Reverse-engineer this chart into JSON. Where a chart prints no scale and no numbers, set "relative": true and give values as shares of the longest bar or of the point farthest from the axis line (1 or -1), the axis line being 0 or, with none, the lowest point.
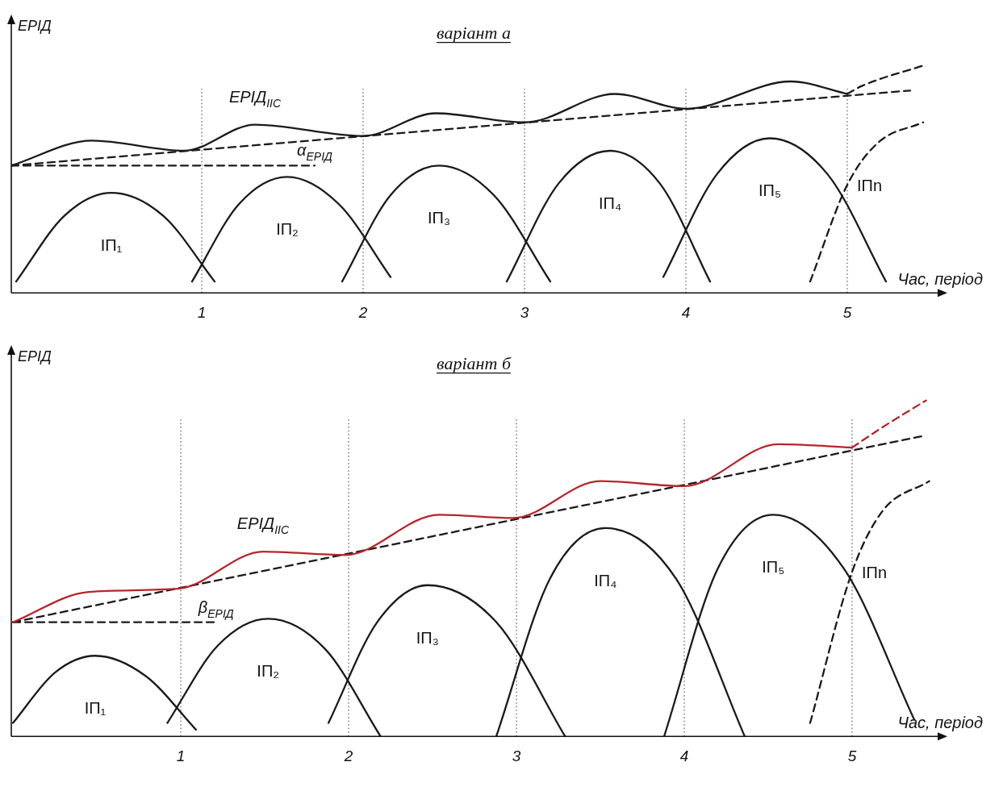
{
  "chart_data": [
    {
      "type": "line",
      "title": "варіант а",
      "ylabel": "ЕРІД",
      "xlabel": "Час, період",
      "relative": true,
      "xlim": [
        -0.18,
        5.55
      ],
      "xticks": [
        1,
        2,
        3,
        4,
        5
      ],
      "marker": "none",
      "legend": false,
      "grid": false,
      "series": [
        {
          "name": "ЕРІД$_{ІІС}$",
          "color": "#1a1a1a",
          "line_style": "solid",
          "x": [
            -0.18,
            0.32,
            0.89,
            1.33,
            2.0,
            2.45,
            3.0,
            3.56,
            4.0,
            4.65,
            5.0
          ],
          "values": [
            0.56,
            0.67,
            0.625,
            0.74,
            0.69,
            0.79,
            0.75,
            0.875,
            0.81,
            0.93,
            0.875
          ]
        },
        {
          "color": "#1a1a1a",
          "line_style": "dashed",
          "x": [
            5.0,
            5.09,
            5.47
          ],
          "values": [
            0.875,
            0.91,
            1.0
          ]
        },
        {
          "color": "#1a1a1a",
          "line_style": "dashed",
          "x": [
            -0.18,
            5.39
          ],
          "values": [
            0.56,
            0.89
          ]
        },
        {
          "color": "#1a1a1a",
          "line_style": "dashed",
          "x": [
            -0.18,
            1.7
          ],
          "values": [
            0.56,
            0.56
          ]
        },
        {
          "name": "ІП₁",
          "color": "#1a1a1a",
          "line_style": "solid",
          "x": [
            -0.15,
            0.15,
            0.44,
            0.76,
            1.08
          ],
          "values": [
            0.05,
            0.34,
            0.44,
            0.34,
            0.05
          ]
        },
        {
          "name": "ІП₂",
          "color": "#1a1a1a",
          "line_style": "solid",
          "x": [
            0.94,
            1.23,
            1.53,
            1.85,
            2.17
          ],
          "values": [
            0.05,
            0.39,
            0.51,
            0.39,
            0.07
          ]
        },
        {
          "name": "ІП₃",
          "color": "#1a1a1a",
          "line_style": "solid",
          "x": [
            1.87,
            2.17,
            2.47,
            2.81,
            3.16
          ],
          "values": [
            0.05,
            0.43,
            0.56,
            0.43,
            0.05
          ]
        },
        {
          "name": "ІП₄",
          "color": "#1a1a1a",
          "line_style": "solid",
          "x": [
            2.89,
            3.21,
            3.53,
            3.84,
            4.15
          ],
          "values": [
            0.05,
            0.48,
            0.625,
            0.48,
            0.05
          ]
        },
        {
          "name": "ІП₅",
          "color": "#1a1a1a",
          "line_style": "solid",
          "x": [
            3.86,
            4.19,
            4.52,
            4.88,
            5.24
          ],
          "values": [
            0.07,
            0.52,
            0.68,
            0.52,
            0.05
          ]
        },
        {
          "name": "ІПn",
          "color": "#1a1a1a",
          "line_style": "dashed",
          "x": [
            4.77,
            5.0,
            5.19,
            5.47
          ],
          "values": [
            0.05,
            0.475,
            0.66,
            0.75
          ]
        }
      ],
      "ref_lines": [
        {
          "axis": "x",
          "value": 1,
          "line_style": "dotted"
        },
        {
          "axis": "x",
          "value": 2,
          "line_style": "dotted"
        },
        {
          "axis": "x",
          "value": 3,
          "line_style": "dotted"
        },
        {
          "axis": "x",
          "value": 4,
          "line_style": "dotted"
        },
        {
          "axis": "x",
          "value": 5,
          "line_style": "dotted"
        }
      ],
      "annotations": [
        "α$_{ЕРІД}$"
      ]
    },
    {
      "type": "line",
      "title": "варіант б",
      "ylabel": "ЕРІД",
      "xlabel": "Час, період",
      "relative": true,
      "xlim": [
        -0.01,
        5.5
      ],
      "xticks": [
        1,
        2,
        3,
        4,
        5
      ],
      "marker": "none",
      "legend": false,
      "grid": false,
      "series": [
        {
          "name": "ЕРІД$_{ІІС}$",
          "color": "#b5262b",
          "line_style": "solid",
          "x": [
            0,
            0.45,
            0.99,
            1.49,
            1.98,
            2.54,
            2.98,
            3.5,
            4.0,
            4.56,
            5.0
          ],
          "values": [
            0.34,
            0.43,
            0.44,
            0.55,
            0.54,
            0.66,
            0.65,
            0.76,
            0.745,
            0.87,
            0.86
          ]
        },
        {
          "color": "#b5262b",
          "line_style": "dashed",
          "x": [
            5.0,
            5.18,
            5.44
          ],
          "values": [
            0.86,
            0.92,
            1.0
          ]
        },
        {
          "color": "#1a1a1a",
          "line_style": "dashed",
          "x": [
            0,
            5.42
          ],
          "values": [
            0.34,
            0.894
          ]
        },
        {
          "color": "#1a1a1a",
          "line_style": "dashed",
          "x": [
            0,
            1.21
          ],
          "values": [
            0.34,
            0.34
          ]
        },
        {
          "name": "ІП₁",
          "color": "#1a1a1a",
          "line_style": "solid",
          "x": [
            0,
            0.25,
            0.49,
            0.79,
            1.09
          ],
          "values": [
            0.04,
            0.19,
            0.24,
            0.18,
            0.02
          ]
        },
        {
          "name": "ІП₂",
          "color": "#1a1a1a",
          "line_style": "solid",
          "x": [
            0.92,
            1.22,
            1.52,
            1.86,
            2.19
          ],
          "values": [
            0.04,
            0.27,
            0.35,
            0.26,
            0.0
          ]
        },
        {
          "name": "ІП₃",
          "color": "#1a1a1a",
          "line_style": "solid",
          "x": [
            1.88,
            2.17,
            2.47,
            2.88,
            3.29
          ],
          "values": [
            0.04,
            0.34,
            0.45,
            0.34,
            0.0
          ]
        },
        {
          "name": "ІП₄",
          "color": "#1a1a1a",
          "line_style": "solid",
          "x": [
            2.88,
            3.2,
            3.53,
            3.95,
            4.36
          ],
          "values": [
            0.0,
            0.47,
            0.62,
            0.47,
            0.0
          ]
        },
        {
          "name": "ІП₅",
          "color": "#1a1a1a",
          "line_style": "solid",
          "x": [
            3.88,
            4.2,
            4.53,
            4.95,
            5.37
          ],
          "values": [
            0.0,
            0.5,
            0.66,
            0.5,
            0.05
          ]
        },
        {
          "name": "ІПn",
          "color": "#1a1a1a",
          "line_style": "dashed",
          "x": [
            4.75,
            5.0,
            5.18,
            5.46
          ],
          "values": [
            0.04,
            0.49,
            0.67,
            0.76
          ]
        }
      ],
      "ref_lines": [
        {
          "axis": "x",
          "value": 1,
          "line_style": "dotted"
        },
        {
          "axis": "x",
          "value": 2,
          "line_style": "dotted"
        },
        {
          "axis": "x",
          "value": 3,
          "line_style": "dotted"
        },
        {
          "axis": "x",
          "value": 4,
          "line_style": "dotted"
        },
        {
          "axis": "x",
          "value": 5,
          "line_style": "dotted"
        }
      ],
      "annotations": [
        "β$_{ЕРІД}$"
      ]
    }
  ]
}
